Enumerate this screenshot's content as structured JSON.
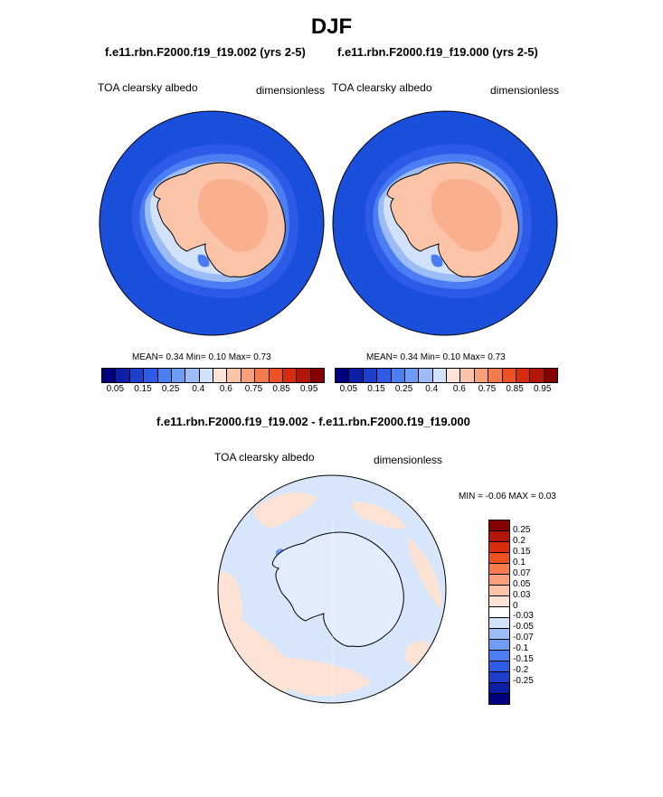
{
  "title": "DJF",
  "left_panel": {
    "case_title": "f.e11.rbn.F2000.f19_f19.002 (yrs 2-5)",
    "variable": "TOA clearsky albedo",
    "units": "dimensionless",
    "stats": "MEAN=   0.34  Min=   0.10  Max=   0.73"
  },
  "right_panel": {
    "case_title": "f.e11.rbn.F2000.f19_f19.000 (yrs 2-5)",
    "variable": "TOA clearsky albedo",
    "units": "dimensionless",
    "stats": "MEAN=   0.34  Min=   0.10  Max=   0.73"
  },
  "diff_panel": {
    "case_title": "f.e11.rbn.F2000.f19_f19.002 - f.e11.rbn.F2000.f19_f19.000",
    "variable": "TOA clearsky albedo",
    "units": "dimensionless",
    "minmax": "MIN =  -0.06 MAX =   0.03"
  },
  "abs_colorbar": {
    "colors": [
      "#00007f",
      "#0d1fa6",
      "#1e3ecc",
      "#2d5be8",
      "#4a7ef2",
      "#6e9cf5",
      "#9cbcf7",
      "#d2e2fa",
      "#fde3d6",
      "#fbc3a8",
      "#f9a07a",
      "#f57a4c",
      "#ef5126",
      "#d92c0f",
      "#b31508",
      "#850000"
    ],
    "labels": [
      "0.05",
      "0.15",
      "0.25",
      "0.4",
      "0.6",
      "0.75",
      "0.85",
      "0.95"
    ]
  },
  "diff_colorbar": {
    "colors": [
      "#850000",
      "#b31508",
      "#d92c0f",
      "#f0501f",
      "#f57a4c",
      "#f9a07a",
      "#fbc3a8",
      "#fde3d6",
      "#ffffff",
      "#d2e2fa",
      "#9cbcf7",
      "#6e9cf5",
      "#4a7ef2",
      "#2d5be8",
      "#1e3ecc",
      "#0d1fa6",
      "#00007f"
    ],
    "labels": [
      "0.25",
      "0.2",
      "0.15",
      "0.1",
      "0.07",
      "0.05",
      "0.03",
      "0",
      "-0.03",
      "-0.05",
      "-0.07",
      "-0.1",
      "-0.15",
      "-0.2",
      "-0.25"
    ]
  }
}
